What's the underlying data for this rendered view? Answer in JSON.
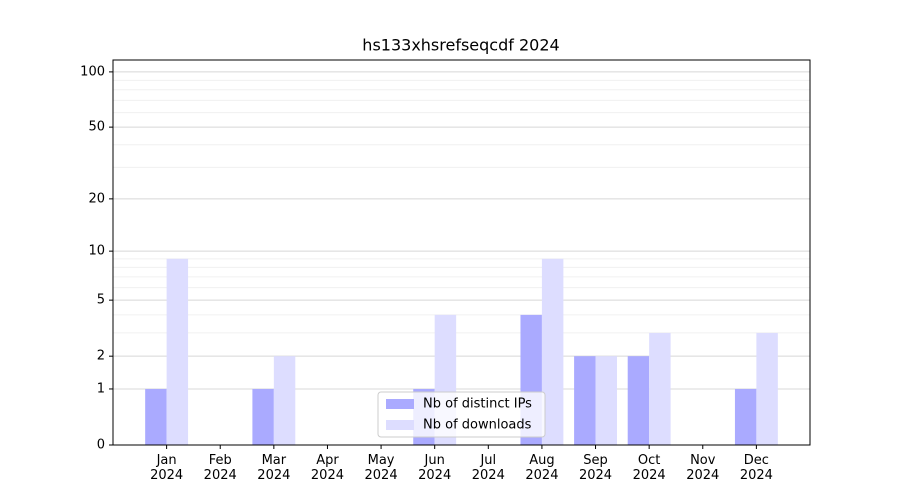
{
  "chart_data": {
    "type": "bar",
    "title": "hs133xhsrefseqcdf 2024",
    "categories": [
      "Jan\n2024",
      "Feb\n2024",
      "Mar\n2024",
      "Apr\n2024",
      "May\n2024",
      "Jun\n2024",
      "Jul\n2024",
      "Aug\n2024",
      "Sep\n2024",
      "Oct\n2024",
      "Nov\n2024",
      "Dec\n2024"
    ],
    "series": [
      {
        "name": "Nb of distinct IPs",
        "color": "#aaaaff",
        "values": [
          1,
          0,
          1,
          0,
          0,
          1,
          0,
          4,
          2,
          2,
          0,
          1
        ]
      },
      {
        "name": "Nb of downloads",
        "color": "#ddddff",
        "values": [
          9,
          0,
          2,
          0,
          0,
          4,
          0,
          9,
          2,
          3,
          0,
          3
        ]
      }
    ],
    "yscale": "log1p",
    "ylim": [
      0,
      116
    ],
    "yticks": [
      0,
      1,
      2,
      5,
      10,
      20,
      50,
      100
    ],
    "minor_yticks": [
      3,
      4,
      6,
      7,
      8,
      9,
      30,
      40,
      60,
      70,
      80,
      90
    ],
    "grid": true,
    "legend": "lower center"
  }
}
